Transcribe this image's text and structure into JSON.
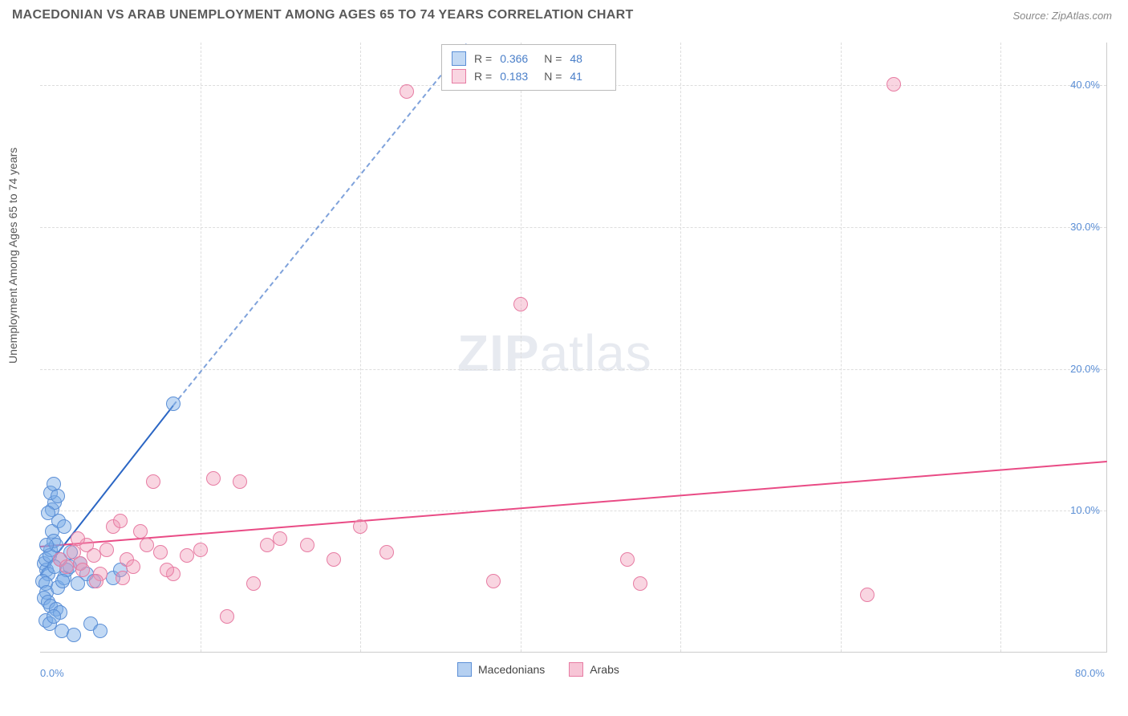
{
  "title": "MACEDONIAN VS ARAB UNEMPLOYMENT AMONG AGES 65 TO 74 YEARS CORRELATION CHART",
  "source": "Source: ZipAtlas.com",
  "y_axis_label": "Unemployment Among Ages 65 to 74 years",
  "watermark": {
    "part1": "ZIP",
    "part2": "atlas"
  },
  "chart": {
    "type": "scatter",
    "background_color": "#ffffff",
    "grid_color": "#dddddd",
    "xlim": [
      0,
      80
    ],
    "ylim": [
      0,
      43
    ],
    "x_ticks": [
      {
        "value": 0,
        "label": "0.0%"
      },
      {
        "value": 80,
        "label": "80.0%"
      }
    ],
    "y_ticks": [
      {
        "value": 10,
        "label": "10.0%"
      },
      {
        "value": 20,
        "label": "20.0%"
      },
      {
        "value": 30,
        "label": "30.0%"
      },
      {
        "value": 40,
        "label": "40.0%"
      }
    ],
    "x_gridlines": [
      12,
      24,
      36,
      48,
      60,
      72
    ],
    "series": [
      {
        "name": "Macedonians",
        "color_fill": "rgba(120,170,230,0.45)",
        "color_stroke": "#5b8fd6",
        "trend_color": "#2b66c4",
        "marker_radius": 9,
        "R": "0.366",
        "N": "48",
        "trend": {
          "x1": 0,
          "y1": 5.5,
          "x2": 10,
          "y2": 17.5,
          "dash_to_x": 32,
          "dash_to_y": 43
        },
        "points": [
          [
            0.3,
            6.2
          ],
          [
            0.5,
            5.8
          ],
          [
            0.4,
            6.5
          ],
          [
            0.6,
            5.5
          ],
          [
            0.8,
            7.2
          ],
          [
            0.2,
            5.0
          ],
          [
            0.7,
            6.8
          ],
          [
            0.4,
            4.8
          ],
          [
            0.9,
            8.5
          ],
          [
            1.0,
            7.8
          ],
          [
            0.5,
            4.2
          ],
          [
            0.3,
            3.8
          ],
          [
            0.6,
            3.5
          ],
          [
            0.8,
            3.2
          ],
          [
            1.2,
            3.0
          ],
          [
            1.5,
            2.8
          ],
          [
            0.4,
            2.2
          ],
          [
            0.7,
            2.0
          ],
          [
            1.0,
            2.5
          ],
          [
            1.3,
            4.5
          ],
          [
            1.8,
            5.2
          ],
          [
            2.0,
            5.8
          ],
          [
            1.5,
            6.5
          ],
          [
            1.2,
            7.5
          ],
          [
            2.2,
            6.0
          ],
          [
            0.9,
            10.0
          ],
          [
            1.1,
            10.5
          ],
          [
            0.8,
            11.2
          ],
          [
            1.0,
            11.8
          ],
          [
            1.3,
            11.0
          ],
          [
            3.5,
            5.5
          ],
          [
            4.0,
            5.0
          ],
          [
            2.8,
            4.8
          ],
          [
            5.5,
            5.2
          ],
          [
            1.6,
            1.5
          ],
          [
            2.5,
            1.2
          ],
          [
            3.8,
            2.0
          ],
          [
            4.5,
            1.5
          ],
          [
            6.0,
            5.8
          ],
          [
            10.0,
            17.5
          ],
          [
            1.4,
            9.2
          ],
          [
            0.6,
            9.8
          ],
          [
            1.8,
            8.8
          ],
          [
            2.3,
            7.0
          ],
          [
            3.0,
            6.2
          ],
          [
            0.5,
            7.5
          ],
          [
            1.1,
            6.0
          ],
          [
            1.7,
            5.0
          ]
        ]
      },
      {
        "name": "Arabs",
        "color_fill": "rgba(240,150,180,0.40)",
        "color_stroke": "#e77ca3",
        "trend_color": "#e94b85",
        "marker_radius": 9,
        "R": "0.183",
        "N": "41",
        "trend": {
          "x1": 0,
          "y1": 7.5,
          "x2": 80,
          "y2": 13.5
        },
        "points": [
          [
            1.5,
            6.5
          ],
          [
            2.0,
            6.0
          ],
          [
            2.5,
            7.0
          ],
          [
            3.0,
            6.2
          ],
          [
            3.5,
            7.5
          ],
          [
            4.0,
            6.8
          ],
          [
            4.5,
            5.5
          ],
          [
            5.0,
            7.2
          ],
          [
            5.5,
            8.8
          ],
          [
            6.0,
            9.2
          ],
          [
            6.5,
            6.5
          ],
          [
            7.0,
            6.0
          ],
          [
            7.5,
            8.5
          ],
          [
            8.0,
            7.5
          ],
          [
            8.5,
            12.0
          ],
          [
            9.0,
            7.0
          ],
          [
            10.0,
            5.5
          ],
          [
            11.0,
            6.8
          ],
          [
            12.0,
            7.2
          ],
          [
            13.0,
            12.2
          ],
          [
            14.0,
            2.5
          ],
          [
            15.0,
            12.0
          ],
          [
            16.0,
            4.8
          ],
          [
            17.0,
            7.5
          ],
          [
            18.0,
            8.0
          ],
          [
            20.0,
            7.5
          ],
          [
            22.0,
            6.5
          ],
          [
            24.0,
            8.8
          ],
          [
            26.0,
            7.0
          ],
          [
            34.0,
            5.0
          ],
          [
            36.0,
            24.5
          ],
          [
            44.0,
            6.5
          ],
          [
            45.0,
            4.8
          ],
          [
            62.0,
            4.0
          ],
          [
            27.5,
            39.5
          ],
          [
            64.0,
            40.0
          ],
          [
            3.2,
            5.8
          ],
          [
            4.2,
            5.0
          ],
          [
            2.8,
            8.0
          ],
          [
            6.2,
            5.2
          ],
          [
            9.5,
            5.8
          ]
        ]
      }
    ],
    "legend_bottom": [
      {
        "label": "Macedonians",
        "fill": "rgba(120,170,230,0.55)",
        "stroke": "#5b8fd6"
      },
      {
        "label": "Arabs",
        "fill": "rgba(240,150,180,0.55)",
        "stroke": "#e77ca3"
      }
    ]
  }
}
